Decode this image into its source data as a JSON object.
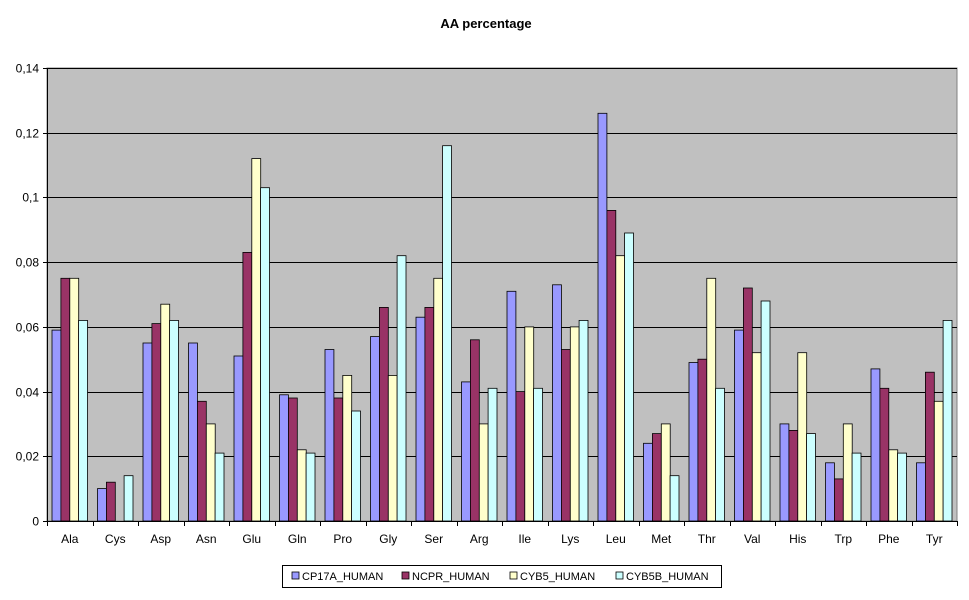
{
  "chart_data": {
    "type": "bar",
    "title": "AA percentage",
    "xlabel": "",
    "ylabel": "",
    "ylim": [
      0,
      0.14
    ],
    "yticks": [
      "0",
      "0,02",
      "0,04",
      "0,06",
      "0,08",
      "0,1",
      "0,12",
      "0,14"
    ],
    "ytick_values": [
      0,
      0.02,
      0.04,
      0.06,
      0.08,
      0.1,
      0.12,
      0.14
    ],
    "grid": true,
    "legend_position": "bottom",
    "plot_background": "#C0C0C0",
    "categories": [
      "Ala",
      "Cys",
      "Asp",
      "Asn",
      "Glu",
      "Gln",
      "Pro",
      "Gly",
      "Ser",
      "Arg",
      "Ile",
      "Lys",
      "Leu",
      "Met",
      "Thr",
      "Val",
      "His",
      "Trp",
      "Phe",
      "Tyr"
    ],
    "series": [
      {
        "name": "CP17A_HUMAN",
        "color": "#9999FF",
        "values": [
          0.059,
          0.01,
          0.055,
          0.055,
          0.051,
          0.039,
          0.053,
          0.057,
          0.063,
          0.043,
          0.071,
          0.073,
          0.126,
          0.024,
          0.049,
          0.059,
          0.03,
          0.018,
          0.047,
          0.018
        ]
      },
      {
        "name": "NCPR_HUMAN",
        "color": "#993366",
        "values": [
          0.075,
          0.012,
          0.061,
          0.037,
          0.083,
          0.038,
          0.038,
          0.066,
          0.066,
          0.056,
          0.04,
          0.053,
          0.096,
          0.027,
          0.05,
          0.072,
          0.028,
          0.013,
          0.041,
          0.046
        ]
      },
      {
        "name": "CYB5_HUMAN",
        "color": "#FFFFCC",
        "values": [
          0.075,
          0.0,
          0.067,
          0.03,
          0.112,
          0.022,
          0.045,
          0.045,
          0.075,
          0.03,
          0.06,
          0.06,
          0.082,
          0.03,
          0.075,
          0.052,
          0.052,
          0.03,
          0.022,
          0.037
        ]
      },
      {
        "name": "CYB5B_HUMAN",
        "color": "#CCFFFF",
        "values": [
          0.062,
          0.014,
          0.062,
          0.021,
          0.103,
          0.021,
          0.034,
          0.082,
          0.116,
          0.041,
          0.041,
          0.062,
          0.089,
          0.014,
          0.041,
          0.068,
          0.027,
          0.021,
          0.021,
          0.062
        ]
      }
    ]
  }
}
